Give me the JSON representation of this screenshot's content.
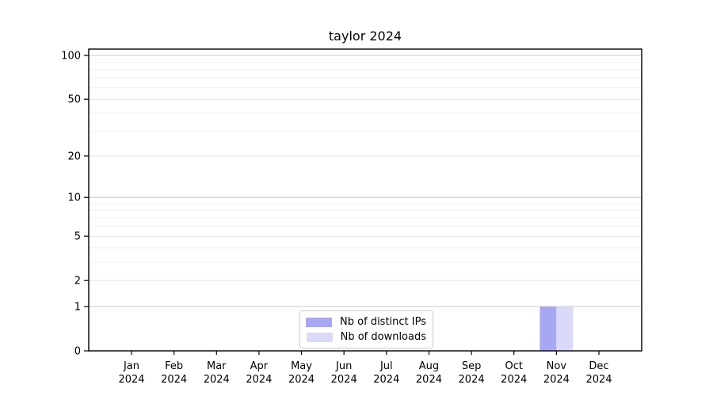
{
  "chart_data": {
    "type": "bar",
    "title": "taylor 2024",
    "yscale": "log1p",
    "ylim": [
      0,
      110
    ],
    "grid": true,
    "legend_position": "lower center",
    "y_tick_labels": [
      0,
      1,
      2,
      5,
      10,
      20,
      50,
      100
    ],
    "y_decade_gridlines": [
      1,
      10,
      100
    ],
    "y_sub_gridlines": [
      2,
      5,
      20,
      50
    ],
    "y_minor_gridlines": [
      3,
      4,
      6,
      7,
      8,
      9,
      30,
      40,
      60,
      70,
      80,
      90
    ],
    "x_year": "2024",
    "categories": [
      "Jan",
      "Feb",
      "Mar",
      "Apr",
      "May",
      "Jun",
      "Jul",
      "Aug",
      "Sep",
      "Oct",
      "Nov",
      "Dec"
    ],
    "series": [
      {
        "name": "Nb of distinct IPs",
        "color": "#a8a8f2",
        "values": [
          0,
          0,
          0,
          0,
          0,
          0,
          0,
          0,
          0,
          0,
          1,
          0
        ]
      },
      {
        "name": "Nb of downloads",
        "color": "#dadaf8",
        "values": [
          0,
          0,
          0,
          0,
          0,
          0,
          0,
          0,
          0,
          0,
          1,
          0
        ]
      }
    ],
    "colors": {
      "axis": "#000000",
      "grid_decade": "#c8c8c8",
      "grid_sub": "#e6e6e6",
      "grid_minor": "#f1f1f1",
      "legend_border": "#cccccc"
    }
  }
}
